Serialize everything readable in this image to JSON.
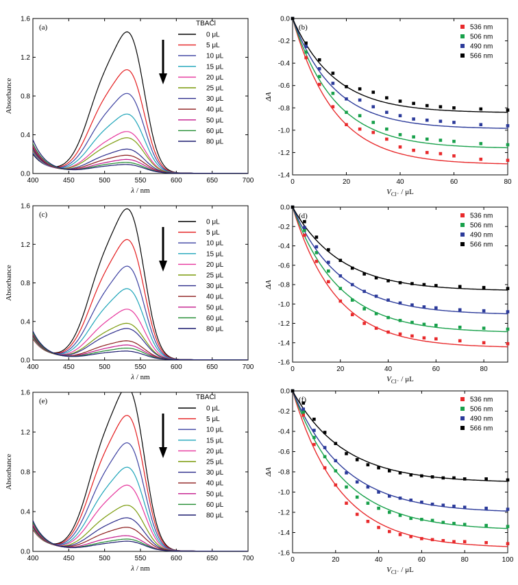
{
  "chart_data": [
    {
      "id": "a",
      "type": "line",
      "panel_label": "(a)",
      "xlabel_italic": "λ",
      "xlabel_rest": " / nm",
      "ylabel": "Absorbance",
      "xlim": [
        400,
        700
      ],
      "ylim": [
        0,
        1.6
      ],
      "xticks": [
        "400",
        "450",
        "500",
        "550",
        "600",
        "650",
        "700"
      ],
      "yticks": [
        "0.0",
        "0.4",
        "0.8",
        "1.2",
        "1.6"
      ],
      "legend_title": "TBACl",
      "arrow": "down",
      "series": [
        {
          "name": "0 μL",
          "color": "#000000",
          "peak": 1.37,
          "sh": 1.22,
          "y400": 0.18
        },
        {
          "name": "5 μL",
          "color": "#e41a1c",
          "peak": 1.0,
          "sh": 0.91,
          "y400": 0.19
        },
        {
          "name": "10 μL",
          "color": "#3a3fa0",
          "peak": 0.77,
          "sh": 0.7,
          "y400": 0.19
        },
        {
          "name": "15 μL",
          "color": "#1aa3b8",
          "peak": 0.57,
          "sh": 0.52,
          "y400": 0.2
        },
        {
          "name": "20 μL",
          "color": "#e6339b",
          "peak": 0.4,
          "sh": 0.37,
          "y400": 0.21
        },
        {
          "name": "25 μL",
          "color": "#7a9a0a",
          "peak": 0.34,
          "sh": 0.31,
          "y400": 0.22
        },
        {
          "name": "30 μL",
          "color": "#2a2a8a",
          "peak": 0.23,
          "sh": 0.21,
          "y400": 0.23
        },
        {
          "name": "40 μL",
          "color": "#8b1a1a",
          "peak": 0.17,
          "sh": 0.16,
          "y400": 0.25
        },
        {
          "name": "50 μL",
          "color": "#c2158a",
          "peak": 0.13,
          "sh": 0.12,
          "y400": 0.27
        },
        {
          "name": "60 μL",
          "color": "#1e8a2e",
          "peak": 0.1,
          "sh": 0.1,
          "y400": 0.29
        },
        {
          "name": "80 μL",
          "color": "#1a1a6e",
          "peak": 0.08,
          "sh": 0.08,
          "y400": 0.33
        }
      ]
    },
    {
      "id": "b",
      "type": "scatter",
      "panel_label": "(b)",
      "xlabel_italic": "V",
      "xlabel_sub": "Cl⁻",
      "xlabel_rest": " / μL",
      "ylabel": "ΔA",
      "xlim": [
        0,
        80
      ],
      "ylim": [
        -1.4,
        0.0
      ],
      "xticks": [
        "0",
        "20",
        "40",
        "60",
        "80"
      ],
      "yticks": [
        "0.0",
        "-0.2",
        "-0.4",
        "-0.6",
        "-0.8",
        "-1.0",
        "-1.2",
        "-1.4"
      ],
      "x": [
        0,
        5,
        10,
        15,
        20,
        25,
        30,
        35,
        40,
        45,
        50,
        55,
        60,
        70,
        80
      ],
      "series": [
        {
          "name": "536 nm",
          "color": "#e8292b",
          "values": [
            0,
            -0.35,
            -0.59,
            -0.79,
            -0.95,
            -0.99,
            -1.02,
            -1.08,
            -1.15,
            -1.18,
            -1.2,
            -1.21,
            -1.23,
            -1.26,
            -1.27
          ]
        },
        {
          "name": "506 nm",
          "color": "#17a04a",
          "values": [
            0,
            -0.3,
            -0.52,
            -0.67,
            -0.84,
            -0.87,
            -0.93,
            -0.99,
            -1.04,
            -1.06,
            -1.08,
            -1.09,
            -1.1,
            -1.12,
            -1.13
          ]
        },
        {
          "name": "490 nm",
          "color": "#2b3a9a",
          "values": [
            0,
            -0.25,
            -0.45,
            -0.58,
            -0.72,
            -0.73,
            -0.79,
            -0.84,
            -0.87,
            -0.9,
            -0.91,
            -0.92,
            -0.93,
            -0.95,
            -0.96
          ]
        },
        {
          "name": "566 nm",
          "color": "#000000",
          "values": [
            0,
            -0.22,
            -0.37,
            -0.49,
            -0.61,
            -0.63,
            -0.66,
            -0.71,
            -0.74,
            -0.76,
            -0.78,
            -0.79,
            -0.8,
            -0.81,
            -0.82
          ]
        }
      ]
    },
    {
      "id": "c",
      "type": "line",
      "panel_label": "(c)",
      "xlabel_italic": "λ",
      "xlabel_rest": " / nm",
      "ylabel": "Absorbance",
      "xlim": [
        400,
        700
      ],
      "ylim": [
        0,
        1.6
      ],
      "xticks": [
        "400",
        "450",
        "500",
        "550",
        "600",
        "650",
        "700"
      ],
      "yticks": [
        "0.0",
        "0.4",
        "0.8",
        "1.2",
        "1.6"
      ],
      "legend_title": "",
      "arrow": "down",
      "series": [
        {
          "name": "0 μL",
          "color": "#000000",
          "peak": 1.47,
          "sh": 1.31,
          "y400": 0.2
        },
        {
          "name": "5 μL",
          "color": "#e41a1c",
          "peak": 1.17,
          "sh": 1.04,
          "y400": 0.2
        },
        {
          "name": "10 μL",
          "color": "#3a3fa0",
          "peak": 0.91,
          "sh": 0.81,
          "y400": 0.21
        },
        {
          "name": "15 μL",
          "color": "#1aa3b8",
          "peak": 0.69,
          "sh": 0.62,
          "y400": 0.21
        },
        {
          "name": "20 μL",
          "color": "#e6339b",
          "peak": 0.49,
          "sh": 0.44,
          "y400": 0.22
        },
        {
          "name": "25 μL",
          "color": "#7a9a0a",
          "peak": 0.35,
          "sh": 0.33,
          "y400": 0.22
        },
        {
          "name": "30 μL",
          "color": "#2a2a8a",
          "peak": 0.3,
          "sh": 0.28,
          "y400": 0.23
        },
        {
          "name": "40 μL",
          "color": "#8b1a1a",
          "peak": 0.18,
          "sh": 0.17,
          "y400": 0.24
        },
        {
          "name": "50 μL",
          "color": "#c2158a",
          "peak": 0.14,
          "sh": 0.13,
          "y400": 0.25
        },
        {
          "name": "60 μL",
          "color": "#1e8a2e",
          "peak": 0.11,
          "sh": 0.1,
          "y400": 0.26
        },
        {
          "name": "80 μL",
          "color": "#1a1a6e",
          "peak": 0.08,
          "sh": 0.08,
          "y400": 0.28
        }
      ]
    },
    {
      "id": "d",
      "type": "scatter",
      "panel_label": "(d)",
      "xlabel_italic": "V",
      "xlabel_sub": "Cl⁻",
      "xlabel_rest": " / μL",
      "ylabel": "ΔA",
      "xlim": [
        0,
        90
      ],
      "ylim": [
        -1.6,
        0.0
      ],
      "xticks": [
        "0",
        "20",
        "40",
        "60",
        "80"
      ],
      "yticks": [
        "0.0",
        "-0.2",
        "-0.4",
        "-0.6",
        "-0.8",
        "-1.0",
        "-1.2",
        "-1.4",
        "-1.6"
      ],
      "x": [
        0,
        5,
        10,
        15,
        20,
        25,
        30,
        35,
        40,
        45,
        50,
        55,
        60,
        70,
        80,
        90
      ],
      "series": [
        {
          "name": "536 nm",
          "color": "#e8292b",
          "values": [
            0,
            -0.29,
            -0.56,
            -0.77,
            -0.97,
            -1.11,
            -1.2,
            -1.25,
            -1.29,
            -1.31,
            -1.33,
            -1.35,
            -1.36,
            -1.38,
            -1.4,
            -1.41
          ]
        },
        {
          "name": "506 nm",
          "color": "#17a04a",
          "values": [
            0,
            -0.24,
            -0.47,
            -0.66,
            -0.84,
            -0.96,
            -1.05,
            -1.1,
            -1.14,
            -1.17,
            -1.19,
            -1.21,
            -1.22,
            -1.24,
            -1.25,
            -1.26
          ]
        },
        {
          "name": "490 nm",
          "color": "#2b3a9a",
          "values": [
            0,
            -0.21,
            -0.41,
            -0.57,
            -0.71,
            -0.8,
            -0.87,
            -0.92,
            -0.96,
            -0.99,
            -1.01,
            -1.03,
            -1.04,
            -1.06,
            -1.07,
            -1.08
          ]
        },
        {
          "name": "566 nm",
          "color": "#000000",
          "values": [
            0,
            -0.15,
            -0.31,
            -0.44,
            -0.55,
            -0.63,
            -0.69,
            -0.73,
            -0.76,
            -0.78,
            -0.79,
            -0.8,
            -0.81,
            -0.82,
            -0.83,
            -0.84
          ]
        }
      ]
    },
    {
      "id": "e",
      "type": "line",
      "panel_label": "(e)",
      "xlabel_italic": "λ",
      "xlabel_rest": " / nm",
      "ylabel": "Absorbance",
      "xlim": [
        400,
        700
      ],
      "ylim": [
        0,
        1.6
      ],
      "xticks": [
        "400",
        "450",
        "500",
        "550",
        "600",
        "650",
        "700"
      ],
      "yticks": [
        "0.0",
        "0.4",
        "0.8",
        "1.2",
        "1.6"
      ],
      "legend_title": "TBACl",
      "arrow": "down",
      "series": [
        {
          "name": "0 μL",
          "color": "#000000",
          "peak": 1.55,
          "sh": 1.39,
          "y400": 0.2
        },
        {
          "name": "5 μL",
          "color": "#e41a1c",
          "peak": 1.28,
          "sh": 1.15,
          "y400": 0.2
        },
        {
          "name": "10 μL",
          "color": "#3a3fa0",
          "peak": 1.02,
          "sh": 0.92,
          "y400": 0.21
        },
        {
          "name": "15 μL",
          "color": "#1aa3b8",
          "peak": 0.79,
          "sh": 0.71,
          "y400": 0.21
        },
        {
          "name": "20 μL",
          "color": "#e6339b",
          "peak": 0.62,
          "sh": 0.56,
          "y400": 0.22
        },
        {
          "name": "25 μL",
          "color": "#7a9a0a",
          "peak": 0.43,
          "sh": 0.39,
          "y400": 0.22
        },
        {
          "name": "30 μL",
          "color": "#2a2a8a",
          "peak": 0.31,
          "sh": 0.29,
          "y400": 0.23
        },
        {
          "name": "40 μL",
          "color": "#8b1a1a",
          "peak": 0.22,
          "sh": 0.21,
          "y400": 0.24
        },
        {
          "name": "50 μL",
          "color": "#c2158a",
          "peak": 0.14,
          "sh": 0.14,
          "y400": 0.25
        },
        {
          "name": "60 μL",
          "color": "#1e8a2e",
          "peak": 0.11,
          "sh": 0.1,
          "y400": 0.27
        },
        {
          "name": "80 μL",
          "color": "#1a1a6e",
          "peak": 0.09,
          "sh": 0.08,
          "y400": 0.29
        }
      ]
    },
    {
      "id": "f",
      "type": "scatter",
      "panel_label": "(f)",
      "xlabel_italic": "V",
      "xlabel_sub": "Cl⁻",
      "xlabel_rest": " / μL",
      "ylabel": "ΔA",
      "xlim": [
        0,
        100
      ],
      "ylim": [
        -1.6,
        0.0
      ],
      "xticks": [
        "0",
        "20",
        "40",
        "60",
        "80",
        "100"
      ],
      "yticks": [
        "0.0",
        "-0.2",
        "-0.4",
        "-0.6",
        "-0.8",
        "-1.0",
        "-1.2",
        "-1.4",
        "-1.6"
      ],
      "x": [
        0,
        5,
        10,
        15,
        20,
        25,
        30,
        35,
        40,
        45,
        50,
        55,
        60,
        65,
        70,
        75,
        80,
        90,
        100
      ],
      "series": [
        {
          "name": "536 nm",
          "color": "#e8292b",
          "values": [
            0,
            -0.24,
            -0.53,
            -0.76,
            -0.93,
            -1.11,
            -1.22,
            -1.29,
            -1.35,
            -1.39,
            -1.42,
            -1.44,
            -1.46,
            -1.47,
            -1.48,
            -1.49,
            -1.49,
            -1.5,
            -1.51
          ]
        },
        {
          "name": "506 nm",
          "color": "#17a04a",
          "values": [
            0,
            -0.21,
            -0.46,
            -0.65,
            -0.79,
            -0.95,
            -1.05,
            -1.11,
            -1.16,
            -1.2,
            -1.23,
            -1.26,
            -1.27,
            -1.28,
            -1.3,
            -1.31,
            -1.32,
            -1.33,
            -1.34
          ]
        },
        {
          "name": "490 nm",
          "color": "#2b3a9a",
          "values": [
            0,
            -0.18,
            -0.39,
            -0.56,
            -0.69,
            -0.81,
            -0.9,
            -0.95,
            -1.0,
            -1.04,
            -1.06,
            -1.08,
            -1.1,
            -1.12,
            -1.13,
            -1.14,
            -1.15,
            -1.16,
            -1.17
          ]
        },
        {
          "name": "566 nm",
          "color": "#000000",
          "values": [
            0,
            -0.12,
            -0.28,
            -0.41,
            -0.52,
            -0.62,
            -0.68,
            -0.73,
            -0.76,
            -0.79,
            -0.81,
            -0.83,
            -0.84,
            -0.85,
            -0.86,
            -0.86,
            -0.87,
            -0.87,
            -0.88
          ]
        }
      ]
    }
  ]
}
